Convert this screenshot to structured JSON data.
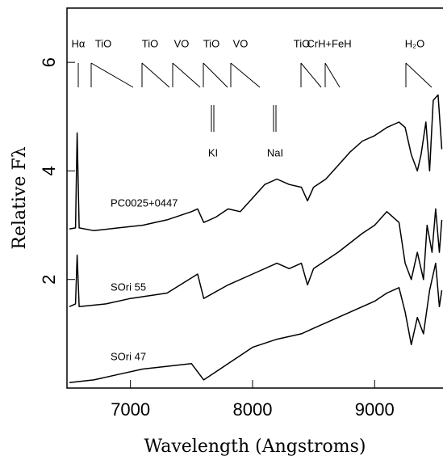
{
  "chart_data": {
    "type": "line",
    "x_label": "Wavelength (Angstroms)",
    "y_label": "Relative Fλ",
    "xlim": [
      6480,
      9560
    ],
    "xticks": [
      7000,
      8000,
      9000
    ],
    "ylim": [
      0,
      7
    ],
    "yticks": [
      2,
      4,
      6
    ],
    "annotations": [
      "Hα",
      "TiO",
      "TiO",
      "VO",
      "TiO",
      "VO",
      "TiO",
      "CrH+FeH",
      "H₂O",
      "KI",
      "NaI"
    ],
    "series": [
      {
        "name": "PC0025+0447",
        "color": "#000000",
        "x": [
          6500,
          6550,
          6563,
          6580,
          6700,
          6900,
          7100,
          7300,
          7500,
          7550,
          7600,
          7700,
          7800,
          7900,
          8000,
          8100,
          8200,
          8300,
          8400,
          8450,
          8500,
          8600,
          8700,
          8800,
          8900,
          9000,
          9100,
          9200,
          9250,
          9300,
          9350,
          9380,
          9420,
          9450,
          9480,
          9520,
          9550
        ],
        "values": [
          2.93,
          2.95,
          4.7,
          2.95,
          2.9,
          2.95,
          3.0,
          3.1,
          3.25,
          3.3,
          3.05,
          3.15,
          3.3,
          3.25,
          3.5,
          3.75,
          3.85,
          3.75,
          3.7,
          3.45,
          3.7,
          3.85,
          4.1,
          4.35,
          4.55,
          4.65,
          4.8,
          4.9,
          4.8,
          4.3,
          4.0,
          4.3,
          4.9,
          4.0,
          5.3,
          5.4,
          4.4
        ]
      },
      {
        "name": "SOri 55",
        "color": "#000000",
        "x": [
          6500,
          6550,
          6563,
          6580,
          6800,
          7000,
          7300,
          7550,
          7600,
          7800,
          8000,
          8200,
          8300,
          8400,
          8450,
          8500,
          8700,
          8900,
          9000,
          9100,
          9200,
          9250,
          9300,
          9350,
          9400,
          9430,
          9470,
          9500,
          9530,
          9550
        ],
        "values": [
          1.5,
          1.55,
          2.45,
          1.5,
          1.55,
          1.65,
          1.75,
          2.1,
          1.65,
          1.9,
          2.1,
          2.3,
          2.2,
          2.3,
          1.9,
          2.2,
          2.5,
          2.85,
          3.0,
          3.25,
          3.05,
          2.3,
          2.0,
          2.5,
          2.0,
          3.0,
          2.5,
          3.3,
          2.5,
          3.1
        ]
      },
      {
        "name": "SOri 47",
        "color": "#000000",
        "x": [
          6500,
          6700,
          6900,
          7100,
          7300,
          7500,
          7600,
          7700,
          7900,
          8000,
          8200,
          8400,
          8500,
          8700,
          8900,
          9000,
          9100,
          9200,
          9250,
          9300,
          9350,
          9400,
          9450,
          9500,
          9530,
          9550
        ],
        "values": [
          0.1,
          0.15,
          0.25,
          0.35,
          0.4,
          0.45,
          0.15,
          0.3,
          0.6,
          0.75,
          0.9,
          1.0,
          1.1,
          1.3,
          1.5,
          1.6,
          1.75,
          1.85,
          1.4,
          0.8,
          1.3,
          1.0,
          1.8,
          2.3,
          1.5,
          1.8
        ]
      }
    ]
  }
}
